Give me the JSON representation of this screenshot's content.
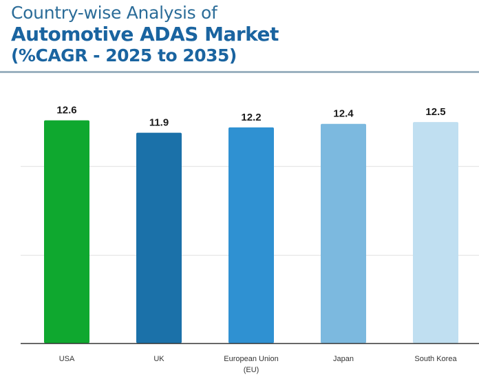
{
  "header": {
    "line1": "Country-wise Analysis of",
    "line2": "Automotive ADAS Market",
    "line3": "(%CAGR - 2025 to 2035)"
  },
  "chart_data": {
    "type": "bar",
    "title": "Country-wise Analysis of Automotive ADAS Market (%CAGR - 2025 to 2035)",
    "xlabel": "",
    "ylabel": "",
    "categories": [
      "USA",
      "UK",
      "European Union (EU)",
      "Japan",
      "South Korea"
    ],
    "category_lines": [
      [
        "USA"
      ],
      [
        "UK"
      ],
      [
        "European Union",
        "(EU)"
      ],
      [
        "Japan"
      ],
      [
        "South Korea"
      ]
    ],
    "values": [
      12.6,
      11.9,
      12.2,
      12.4,
      12.5
    ],
    "data_labels": [
      "12.6",
      "11.9",
      "12.2",
      "12.4",
      "12.5"
    ],
    "colors": [
      "#0fa82f",
      "#1b71a9",
      "#2f91d2",
      "#7cb9df",
      "#c0dff1"
    ],
    "ylim": [
      0,
      15
    ],
    "gridlines": [
      5,
      10
    ],
    "grid": true,
    "legend": "none"
  }
}
